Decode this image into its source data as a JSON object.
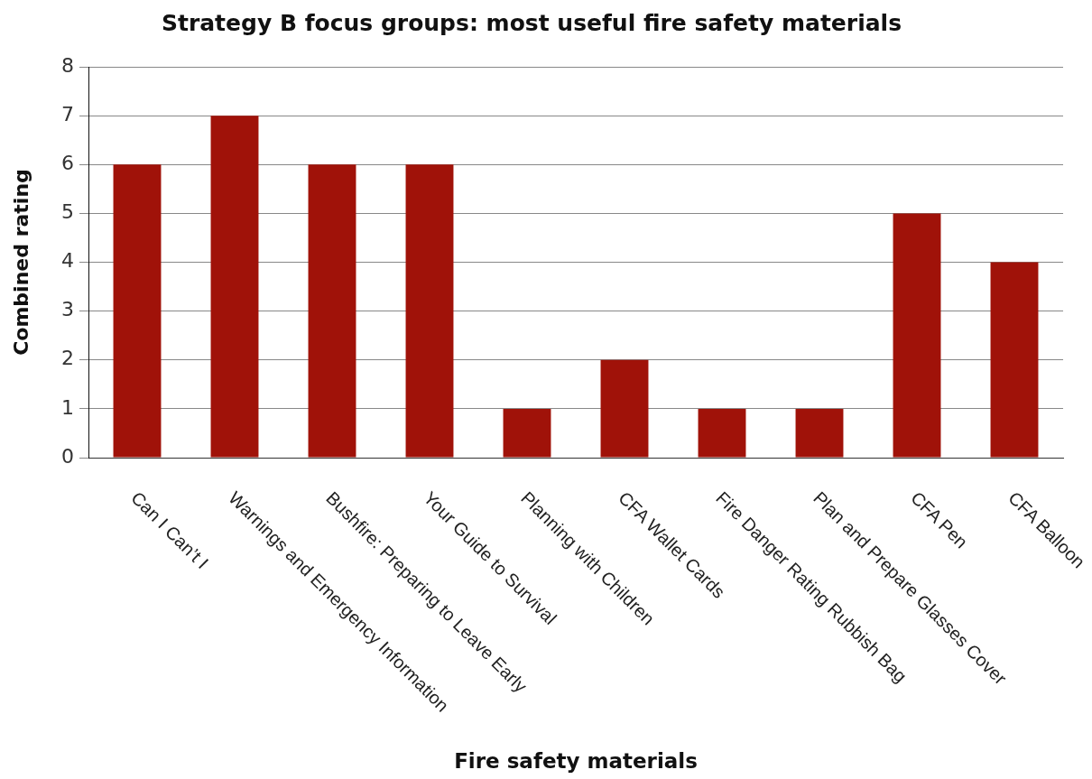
{
  "chart_data": {
    "type": "bar",
    "title": "Strategy B focus groups: most useful fire safety materials",
    "xlabel": "Fire safety materials",
    "ylabel": "Combined rating",
    "categories": [
      "Can I Can’t I",
      "Warnings and Emergency Information",
      "Bushfire: Preparing to Leave Early",
      "Your Guide to Survival",
      "Planning with Children",
      "CFA Wallet Cards",
      "Fire Danger Rating Rubbish Bag",
      "Plan and Prepare Glasses Cover",
      "CFA Pen",
      "CFA Balloon"
    ],
    "values": [
      6,
      7,
      6,
      6,
      1,
      2,
      1,
      1,
      5,
      4
    ],
    "color": "#a01209",
    "ylim": [
      0,
      8
    ],
    "yticks": [
      0,
      1,
      2,
      3,
      4,
      5,
      6,
      7,
      8
    ],
    "grid": "y"
  }
}
